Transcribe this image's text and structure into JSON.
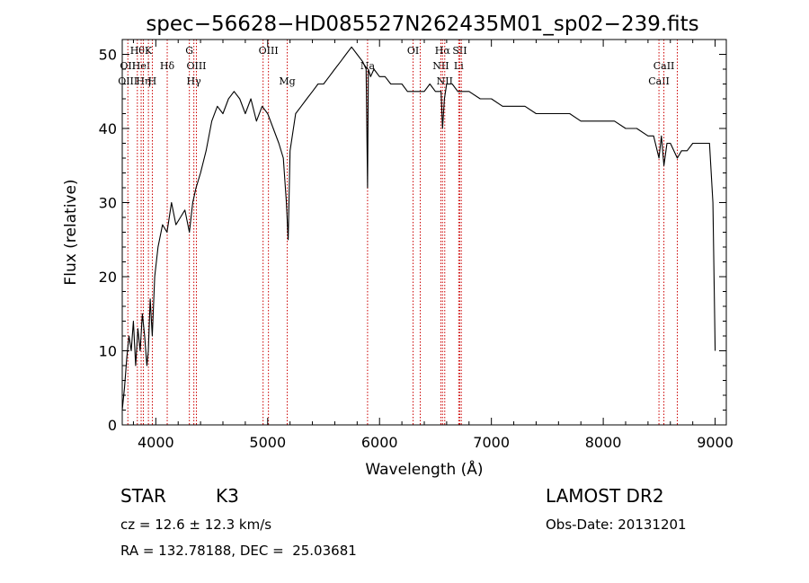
{
  "chart_data": {
    "type": "line",
    "title": "spec−56628−HD085527N262435M01_sp02−239.fits",
    "xlabel": "Wavelength (Å)",
    "ylabel": "Flux (relative)",
    "xlim": [
      3700,
      9100
    ],
    "ylim": [
      0,
      52
    ],
    "xticks": [
      4000,
      5000,
      6000,
      7000,
      8000,
      9000
    ],
    "yticks": [
      0,
      10,
      20,
      30,
      40,
      50
    ],
    "grid": false,
    "series": [
      {
        "x": [
          3700,
          3720,
          3740,
          3760,
          3780,
          3800,
          3820,
          3840,
          3860,
          3880,
          3900,
          3920,
          3933,
          3950,
          3968,
          3990,
          4020,
          4060,
          4100,
          4140,
          4180,
          4220,
          4260,
          4300,
          4330,
          4360,
          4400,
          4450,
          4500,
          4550,
          4600,
          4650,
          4700,
          4750,
          4800,
          4850,
          4900,
          4950,
          5000,
          5050,
          5100,
          5140,
          5167,
          5183,
          5200,
          5250,
          5300,
          5350,
          5400,
          5450,
          5500,
          5550,
          5600,
          5650,
          5700,
          5750,
          5800,
          5850,
          5880,
          5893,
          5900,
          5920,
          5950,
          6000,
          6050,
          6100,
          6150,
          6200,
          6250,
          6300,
          6350,
          6400,
          6450,
          6500,
          6550,
          6563,
          6580,
          6600,
          6650,
          6700,
          6800,
          6900,
          7000,
          7100,
          7200,
          7300,
          7400,
          7500,
          7600,
          7700,
          7800,
          7900,
          8000,
          8100,
          8200,
          8300,
          8400,
          8450,
          8498,
          8520,
          8542,
          8570,
          8600,
          8662,
          8700,
          8750,
          8800,
          8850,
          8900,
          8950,
          8980,
          9000
        ],
        "y": [
          2,
          5,
          9,
          12,
          10,
          14,
          8,
          13,
          10,
          15,
          12,
          8,
          10,
          17,
          12,
          20,
          24,
          27,
          26,
          30,
          27,
          28,
          29,
          26,
          30,
          32,
          34,
          37,
          41,
          43,
          42,
          44,
          45,
          44,
          42,
          44,
          41,
          43,
          42,
          40,
          38,
          36,
          30,
          25,
          37,
          42,
          43,
          44,
          45,
          46,
          46,
          47,
          48,
          49,
          50,
          51,
          50,
          49,
          48,
          32,
          48,
          47,
          48,
          47,
          47,
          46,
          46,
          46,
          45,
          45,
          45,
          45,
          46,
          45,
          45,
          40,
          44,
          46,
          46,
          45,
          45,
          44,
          44,
          43,
          43,
          43,
          42,
          42,
          42,
          42,
          41,
          41,
          41,
          41,
          40,
          40,
          39,
          39,
          36,
          39,
          35,
          38,
          38,
          36,
          37,
          37,
          38,
          38,
          38,
          38,
          30,
          10
        ]
      }
    ],
    "line_markers": [
      {
        "wavelength": 3750,
        "labels": [
          "OII",
          "OIII"
        ],
        "tier": [
          1,
          2
        ]
      },
      {
        "wavelength": 3835,
        "labels": [
          "Hθ"
        ],
        "tier": [
          0
        ]
      },
      {
        "wavelength": 3869,
        "labels": [
          "HeI"
        ],
        "tier": [
          1
        ]
      },
      {
        "wavelength": 3889,
        "labels": [
          "Hη"
        ],
        "tier": [
          2
        ]
      },
      {
        "wavelength": 3934,
        "labels": [
          "K"
        ],
        "tier": [
          0
        ]
      },
      {
        "wavelength": 3969,
        "labels": [
          "H"
        ],
        "tier": [
          2
        ]
      },
      {
        "wavelength": 4102,
        "labels": [
          "Hδ"
        ],
        "tier": [
          1
        ]
      },
      {
        "wavelength": 4300,
        "labels": [
          "G"
        ],
        "tier": [
          0
        ]
      },
      {
        "wavelength": 4340,
        "labels": [
          "Hγ"
        ],
        "tier": [
          2
        ]
      },
      {
        "wavelength": 4363,
        "labels": [
          "OIII"
        ],
        "tier": [
          1
        ]
      },
      {
        "wavelength": 4959,
        "labels": [],
        "tier": []
      },
      {
        "wavelength": 5007,
        "labels": [
          "OIII"
        ],
        "tier": [
          0
        ]
      },
      {
        "wavelength": 5175,
        "labels": [
          "Mg"
        ],
        "tier": [
          2
        ]
      },
      {
        "wavelength": 5893,
        "labels": [
          "Na"
        ],
        "tier": [
          1
        ]
      },
      {
        "wavelength": 6300,
        "labels": [
          "OI"
        ],
        "tier": [
          0
        ]
      },
      {
        "wavelength": 6364,
        "labels": [],
        "tier": []
      },
      {
        "wavelength": 6548,
        "labels": [
          "NII"
        ],
        "tier": [
          1
        ]
      },
      {
        "wavelength": 6563,
        "labels": [
          "Hα"
        ],
        "tier": [
          0
        ]
      },
      {
        "wavelength": 6583,
        "labels": [
          "NII"
        ],
        "tier": [
          2
        ]
      },
      {
        "wavelength": 6708,
        "labels": [
          "Li"
        ],
        "tier": [
          1
        ]
      },
      {
        "wavelength": 6717,
        "labels": [
          "SII"
        ],
        "tier": [
          0
        ]
      },
      {
        "wavelength": 6731,
        "labels": [],
        "tier": []
      },
      {
        "wavelength": 8498,
        "labels": [
          "CaII"
        ],
        "tier": [
          2
        ]
      },
      {
        "wavelength": 8542,
        "labels": [
          "CaII"
        ],
        "tier": [
          1
        ]
      },
      {
        "wavelength": 8662,
        "labels": [],
        "tier": []
      }
    ],
    "colors": {
      "spectrum": "#000000",
      "markers": "#cc0000"
    }
  },
  "info": {
    "class": "STAR",
    "subclass": "K3",
    "survey": "LAMOST DR2",
    "cz": "cz = 12.6 ± 12.3 km/s",
    "obs_date": "Obs-Date: 20131201",
    "coords": "RA = 132.78188, DEC =  25.03681"
  }
}
